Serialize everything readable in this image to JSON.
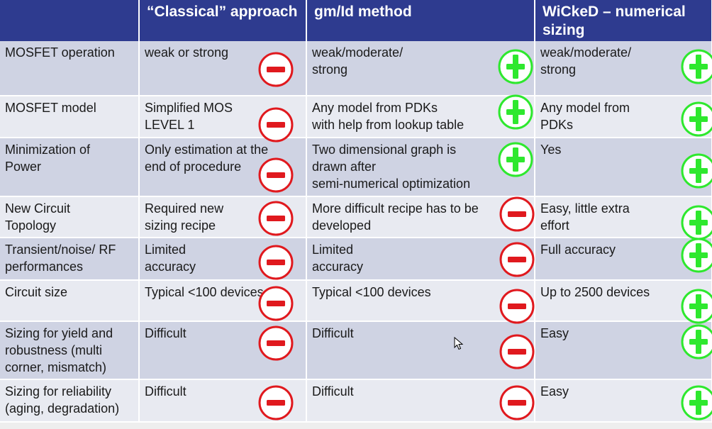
{
  "columns": [
    "",
    "“Classical” approach",
    "gm/Id method",
    "WiCkeD – numerical sizing"
  ],
  "rows": [
    {
      "criterion": "MOSFET operation",
      "cells": [
        {
          "text": "weak or strong",
          "mark": "minus"
        },
        {
          "text": "weak/moderate/\nstrong",
          "mark": "plus"
        },
        {
          "text": "weak/moderate/\nstrong",
          "mark": "plus"
        }
      ]
    },
    {
      "criterion": "MOSFET model",
      "cells": [
        {
          "text": "Simplified MOS\nLEVEL 1",
          "mark": "minus"
        },
        {
          "text": "Any model from PDKs\nwith help from lookup table",
          "mark": "plus"
        },
        {
          "text": "Any model from\nPDKs",
          "mark": "plus"
        }
      ]
    },
    {
      "criterion": "Minimization of\nPower",
      "cells": [
        {
          "text": "Only estimation at the\nend of procedure",
          "mark": "minus"
        },
        {
          "text": "Two dimensional graph is\ndrawn after\nsemi-numerical optimization",
          "mark": "plus"
        },
        {
          "text": "Yes",
          "mark": "plus"
        }
      ]
    },
    {
      "criterion": "New Circuit\nTopology",
      "cells": [
        {
          "text": "Required new\nsizing recipe",
          "mark": "minus"
        },
        {
          "text": "More difficult recipe has to be\ndeveloped",
          "mark": "minus"
        },
        {
          "text": "Easy, little extra\neffort",
          "mark": "plus"
        }
      ]
    },
    {
      "criterion": "Transient/noise/ RF\nperformances",
      "cells": [
        {
          "text": "Limited\naccuracy",
          "mark": "minus"
        },
        {
          "text": "Limited\naccuracy",
          "mark": "minus"
        },
        {
          "text": "Full accuracy",
          "mark": "plus"
        }
      ]
    },
    {
      "criterion": "Circuit size",
      "cells": [
        {
          "text": "Typical <100 devices",
          "mark": "minus"
        },
        {
          "text": "Typical <100 devices",
          "mark": "minus"
        },
        {
          "text": "Up to 2500 devices",
          "mark": "plus"
        }
      ]
    },
    {
      "criterion": "Sizing for yield and\nrobustness (multi\ncorner, mismatch)",
      "cells": [
        {
          "text": "Difficult",
          "mark": "minus"
        },
        {
          "text": "Difficult",
          "mark": "minus"
        },
        {
          "text": "Easy",
          "mark": "plus"
        }
      ]
    },
    {
      "criterion": "Sizing for reliability\n(aging, degradation)",
      "cells": [
        {
          "text": "Difficult",
          "mark": "minus"
        },
        {
          "text": "Difficult",
          "mark": "minus"
        },
        {
          "text": "Easy",
          "mark": "plus"
        }
      ]
    }
  ],
  "colors": {
    "header_bg": "#2e3b8f",
    "row_dark": "#cfd3e3",
    "row_light": "#e8eaf1",
    "minus": "#e0191e",
    "plus": "#2ee82e"
  }
}
